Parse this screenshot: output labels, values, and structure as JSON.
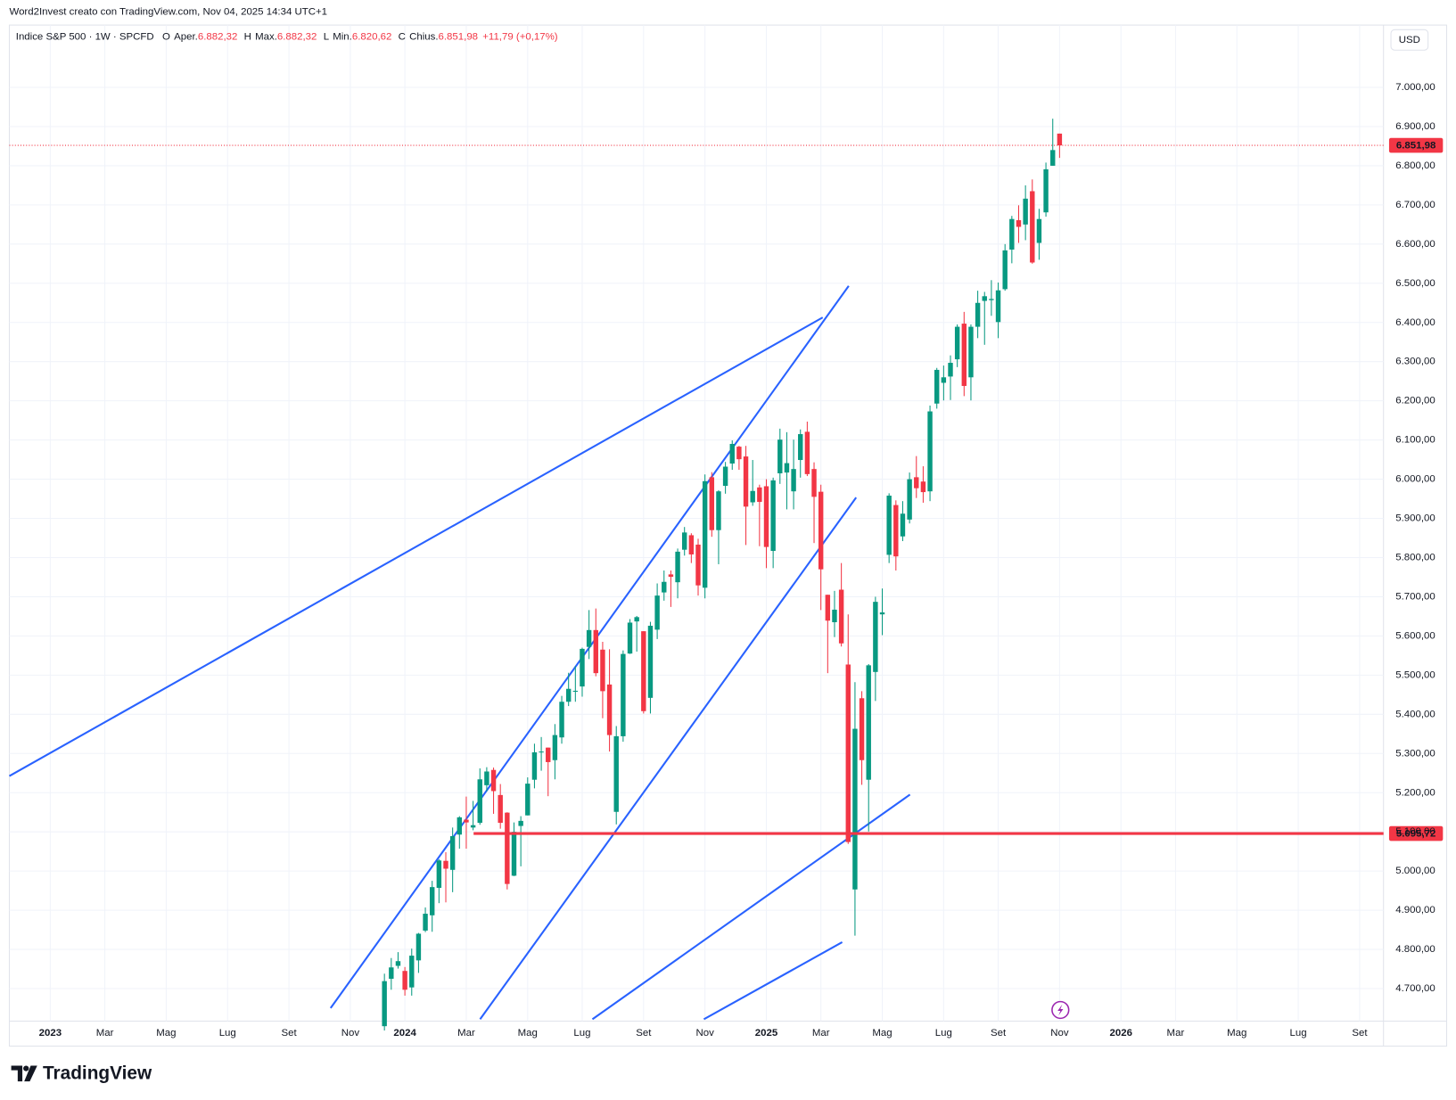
{
  "header": {
    "credit": "Word2Invest creato con TradingView.com, Nov 04, 2025 14:34 UTC+1",
    "logo": "TradingView"
  },
  "chart_data": {
    "type": "candlestick",
    "symbol": "Indice S&P 500 · 1W · SPCFD",
    "ohlc_legend": [
      {
        "key": "O",
        "name": "Aper.",
        "value": "6.882,32"
      },
      {
        "key": "H",
        "name": "Max.",
        "value": "6.882,32"
      },
      {
        "key": "L",
        "name": "Min.",
        "value": "6.820,62"
      },
      {
        "key": "C",
        "name": "Chius.",
        "value": "6.851,98"
      }
    ],
    "change": "+11,79 (+0,17%)",
    "currency": "USD",
    "up_color": "#089981",
    "down_color": "#f23645",
    "x": [
      49,
      50,
      51,
      52,
      53,
      54,
      55,
      56,
      57,
      58,
      59,
      60,
      61,
      62,
      63,
      64,
      65,
      66,
      67,
      68,
      69,
      70,
      71,
      72,
      73,
      74,
      75,
      76,
      77,
      78,
      79,
      80,
      81,
      82,
      83,
      84,
      85,
      86,
      87,
      88,
      89,
      90,
      91,
      92,
      93,
      94,
      95,
      96,
      97,
      98,
      99,
      100,
      101,
      102,
      103,
      104,
      105,
      106,
      107,
      108,
      109,
      110,
      111,
      112,
      113,
      114,
      115,
      116,
      117,
      118,
      119,
      120,
      121,
      122,
      123,
      124,
      125,
      126,
      127,
      128,
      129,
      130,
      131,
      132,
      133,
      134,
      135,
      136,
      137,
      138,
      139,
      140,
      141,
      142,
      143,
      144,
      145,
      146,
      147,
      148
    ],
    "open": [
      4604,
      4725,
      4758,
      4745,
      4703,
      4772,
      4848,
      4887,
      4957,
      5026,
      5003,
      5093,
      5131,
      5111,
      5123,
      5219,
      5258,
      5194,
      5149,
      4988,
      5115,
      5142,
      5233,
      5305,
      5315,
      5283,
      5341,
      5432,
      5460,
      5471,
      5572,
      5615,
      5565,
      5476,
      5151,
      5344,
      5555,
      5637,
      5612,
      5442,
      5616,
      5711,
      5757,
      5737,
      5820,
      5857,
      5833,
      5723,
      6005,
      5870,
      5983,
      6040,
      6083,
      6058,
      5941,
      5979,
      5982,
      5817,
      6015,
      6017,
      5969,
      6049,
      6121,
      6026,
      5968,
      5705,
      5635,
      5718,
      5527,
      4953,
      5441,
      5233,
      5508,
      5655,
      5807,
      5934,
      5854,
      5897,
      6005,
      5994,
      5969,
      6193,
      6246,
      6262,
      6306,
      6397,
      6260,
      6389,
      6455,
      6457,
      6401,
      6485,
      6586,
      6661,
      6650,
      6735,
      6603,
      6681,
      6800,
      6882
    ],
    "high": [
      4738,
      4778,
      4793,
      4755,
      4802,
      4842,
      4907,
      4975,
      5030,
      5048,
      5111,
      5140,
      5190,
      5179,
      5262,
      5265,
      5264,
      5222,
      5150,
      5124,
      5140,
      5239,
      5325,
      5342,
      5315,
      5375,
      5447,
      5506,
      5523,
      5570,
      5666,
      5670,
      5585,
      5566,
      5370,
      5563,
      5643,
      5651,
      5612,
      5636,
      5734,
      5767,
      5767,
      5823,
      5878,
      5862,
      5848,
      6012,
      6018,
      5972,
      6044,
      6099,
      6085,
      6085,
      6049,
      5986,
      6000,
      6004,
      6129,
      6120,
      6101,
      6127,
      6147,
      6043,
      5986,
      5705,
      5715,
      5786,
      5655,
      5482,
      5459,
      5528,
      5700,
      5721,
      5964,
      5946,
      5944,
      6017,
      6059,
      6033,
      6188,
      6284,
      6290,
      6316,
      6395,
      6427,
      6395,
      6481,
      6478,
      6508,
      6502,
      6600,
      6672,
      6699,
      6750,
      6765,
      6690,
      6808,
      6920,
      6882
    ],
    "low": [
      4593,
      4697,
      4751,
      4682,
      4682,
      4740,
      4844,
      4845,
      4918,
      4920,
      4946,
      5057,
      5057,
      5104,
      5118,
      5203,
      5146,
      5108,
      4953,
      4987,
      5012,
      5142,
      5211,
      5256,
      5191,
      5234,
      5325,
      5421,
      5432,
      5445,
      5541,
      5497,
      5390,
      5305,
      5119,
      5330,
      5554,
      5560,
      5402,
      5402,
      5592,
      5690,
      5674,
      5696,
      5805,
      5786,
      5703,
      5696,
      5853,
      5783,
      5963,
      6024,
      6024,
      5832,
      5932,
      5829,
      5773,
      5773,
      5988,
      5923,
      5923,
      6004,
      6008,
      5837,
      5666,
      5505,
      5597,
      5573,
      5069,
      4835,
      5220,
      5101,
      5434,
      5602,
      5786,
      5767,
      5842,
      5887,
      5952,
      5940,
      5944,
      6180,
      6201,
      6202,
      6286,
      6212,
      6201,
      6360,
      6343,
      6417,
      6360,
      6481,
      6551,
      6603,
      6610,
      6550,
      6560,
      6670,
      6800,
      6820
    ],
    "close": [
      4719,
      4754,
      4770,
      4697,
      4784,
      4840,
      4891,
      4959,
      5027,
      5006,
      5089,
      5137,
      5124,
      5117,
      5234,
      5254,
      5204,
      5123,
      4967,
      5100,
      5128,
      5223,
      5303,
      5305,
      5278,
      5347,
      5432,
      5465,
      5460,
      5567,
      5615,
      5505,
      5459,
      5347,
      5344,
      5554,
      5634,
      5648,
      5408,
      5626,
      5703,
      5738,
      5751,
      5815,
      5864,
      5808,
      5729,
      5995,
      5870,
      5969,
      6032,
      6090,
      6051,
      5930,
      5970,
      5942,
      5827,
      5997,
      6101,
      6041,
      6026,
      6115,
      6013,
      5955,
      5770,
      5639,
      5667,
      5581,
      5074,
      5363,
      5283,
      5525,
      5687,
      5660,
      5958,
      5803,
      5912,
      6000,
      5977,
      5967,
      6173,
      6279,
      6260,
      6297,
      6389,
      6238,
      6389,
      6450,
      6467,
      6460,
      6482,
      6584,
      6664,
      6644,
      6716,
      6553,
      6664,
      6791,
      6840,
      6852
    ],
    "xlim": [
      -6,
      195.5
    ],
    "xticks": [
      {
        "value": 0,
        "label": "2023"
      },
      {
        "value": 8,
        "label": "Mar"
      },
      {
        "value": 17,
        "label": "Mag"
      },
      {
        "value": 26,
        "label": "Lug"
      },
      {
        "value": 35,
        "label": "Set"
      },
      {
        "value": 44,
        "label": "Nov"
      },
      {
        "value": 52,
        "label": "2024"
      },
      {
        "value": 61,
        "label": "Mar"
      },
      {
        "value": 70,
        "label": "Mag"
      },
      {
        "value": 78,
        "label": "Lug"
      },
      {
        "value": 87,
        "label": "Set"
      },
      {
        "value": 96,
        "label": "Nov"
      },
      {
        "value": 105,
        "label": "2025"
      },
      {
        "value": 113,
        "label": "Mar"
      },
      {
        "value": 122,
        "label": "Mag"
      },
      {
        "value": 131,
        "label": "Lug"
      },
      {
        "value": 139,
        "label": "Set"
      },
      {
        "value": 148,
        "label": "Nov"
      },
      {
        "value": 157,
        "label": "2026"
      },
      {
        "value": 165,
        "label": "Mar"
      },
      {
        "value": 174,
        "label": "Mag"
      },
      {
        "value": 183,
        "label": "Lug"
      },
      {
        "value": 192,
        "label": "Set"
      }
    ],
    "ylim": [
      4617,
      7159
    ],
    "yticks": [
      {
        "value": 4700,
        "label": "4.700,00"
      },
      {
        "value": 4800,
        "label": "4.800,00"
      },
      {
        "value": 4900,
        "label": "4.900,00"
      },
      {
        "value": 5000,
        "label": "5.000,00"
      },
      {
        "value": 5100,
        "label": "5.100,00"
      },
      {
        "value": 5200,
        "label": "5.200,00"
      },
      {
        "value": 5300,
        "label": "5.300,00"
      },
      {
        "value": 5400,
        "label": "5.400,00"
      },
      {
        "value": 5500,
        "label": "5.500,00"
      },
      {
        "value": 5600,
        "label": "5.600,00"
      },
      {
        "value": 5700,
        "label": "5.700,00"
      },
      {
        "value": 5800,
        "label": "5.800,00"
      },
      {
        "value": 5900,
        "label": "5.900,00"
      },
      {
        "value": 6000,
        "label": "6.000,00"
      },
      {
        "value": 6100,
        "label": "6.100,00"
      },
      {
        "value": 6200,
        "label": "6.200,00"
      },
      {
        "value": 6300,
        "label": "6.300,00"
      },
      {
        "value": 6400,
        "label": "6.400,00"
      },
      {
        "value": 6500,
        "label": "6.500,00"
      },
      {
        "value": 6600,
        "label": "6.600,00"
      },
      {
        "value": 6700,
        "label": "6.700,00"
      },
      {
        "value": 6800,
        "label": "6.800,00"
      },
      {
        "value": 6900,
        "label": "6.900,00"
      },
      {
        "value": 7000,
        "label": "7.000,00"
      }
    ],
    "grid": true,
    "price_lines": [
      {
        "value": 6851.98,
        "label": "6.851,98",
        "color": "#f23645",
        "style": "dotted"
      },
      {
        "value": 5095.72,
        "label": "5.095,72",
        "color": "#f23645",
        "style": "solid"
      }
    ]
  }
}
